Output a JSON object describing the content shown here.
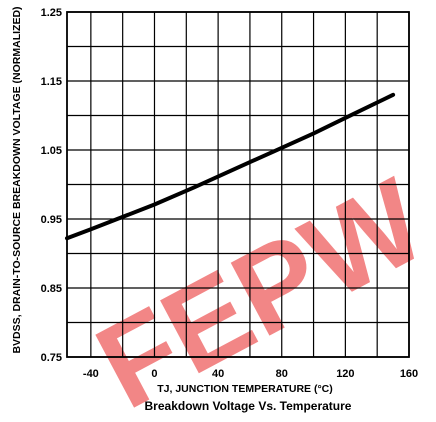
{
  "chart_data": {
    "type": "line",
    "title": "",
    "caption": "Breakdown Voltage Vs. Temperature",
    "xlabel": "TJ, JUNCTION TEMPERATURE (°C)",
    "ylabel": "BVDSS, DRAIN-TO-SOURCE BREAKDOWN VOLTAGE (NORMALIZED)",
    "xlim": [
      -55,
      160
    ],
    "ylim": [
      0.75,
      1.25
    ],
    "x_ticks": [
      -40,
      0,
      40,
      80,
      120,
      160
    ],
    "x_tick_labels": [
      "-40",
      "0",
      "40",
      "80",
      "120",
      "160"
    ],
    "y_ticks": [
      0.75,
      0.85,
      0.95,
      1.05,
      1.15,
      1.25
    ],
    "y_tick_labels": [
      "0.75",
      "0.85",
      "0.95",
      "1.05",
      "1.15",
      "1.25"
    ],
    "grid": true,
    "series": [
      {
        "x": [
          -55,
          -40,
          -20,
          0,
          25,
          50,
          75,
          100,
          125,
          150
        ],
        "y": [
          0.922,
          0.935,
          0.953,
          0.971,
          0.996,
          1.022,
          1.048,
          1.074,
          1.102,
          1.13
        ]
      }
    ]
  },
  "watermark": {
    "text": "FEPW",
    "color": "#f07575"
  },
  "colors": {
    "line": "#000000",
    "grid": "#000000",
    "background": "#ffffff"
  }
}
